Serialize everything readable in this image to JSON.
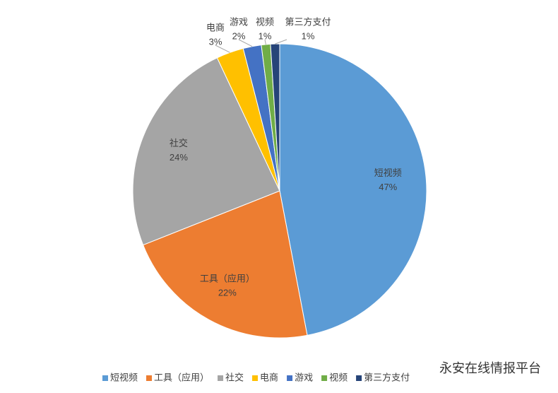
{
  "chart_data": {
    "type": "pie",
    "categories": [
      "短视频",
      "工具（应用）",
      "社交",
      "电商",
      "游戏",
      "视频",
      "第三方支付"
    ],
    "values": [
      47,
      22,
      24,
      3,
      2,
      1,
      1
    ],
    "value_labels": [
      "47%",
      "22%",
      "24%",
      "3%",
      "2%",
      "1%",
      "1%"
    ],
    "colors": [
      "#5b9bd5",
      "#ed7d31",
      "#a5a5a5",
      "#ffc000",
      "#4472c4",
      "#70ad47",
      "#264478"
    ],
    "legend": "bottom"
  },
  "watermark": "永安在线情报平台"
}
